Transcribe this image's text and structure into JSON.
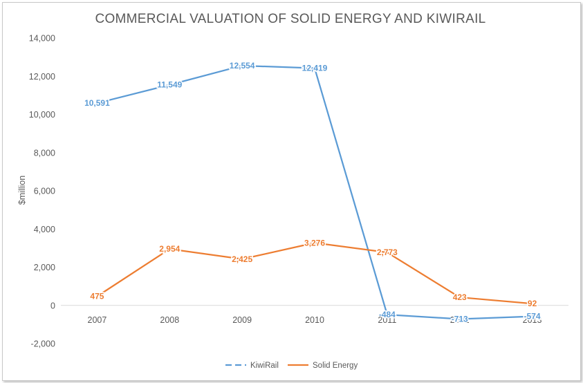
{
  "chart_data": {
    "type": "line",
    "title": "COMMERCIAL VALUATION OF SOLID ENERGY AND KIWIRAIL",
    "xlabel": "",
    "ylabel": "$million",
    "categories": [
      "2007",
      "2008",
      "2009",
      "2010",
      "2011",
      "2012",
      "2013"
    ],
    "ylim": [
      -2000,
      14000
    ],
    "yticks": [
      -2000,
      0,
      2000,
      4000,
      6000,
      8000,
      10000,
      12000,
      14000
    ],
    "ytick_labels": [
      "-2,000",
      "0",
      "2,000",
      "4,000",
      "6,000",
      "8,000",
      "10,000",
      "12,000",
      "14,000"
    ],
    "grid": false,
    "legend_position": "bottom-center",
    "series": [
      {
        "name": "KiwiRail",
        "color": "#5b9bd5",
        "values": [
          10591,
          11549,
          12554,
          12419,
          -484,
          -713,
          -574
        ],
        "labels": [
          "10,591",
          "11,549",
          "12,554",
          "12,419",
          "-484",
          "-713",
          "-574"
        ]
      },
      {
        "name": "Solid Energy",
        "color": "#ed7d31",
        "values": [
          475,
          2954,
          2425,
          3276,
          2773,
          423,
          92
        ],
        "labels": [
          "475",
          "2,954",
          "2,425",
          "3,276",
          "2,773",
          "423",
          "92"
        ]
      }
    ]
  }
}
